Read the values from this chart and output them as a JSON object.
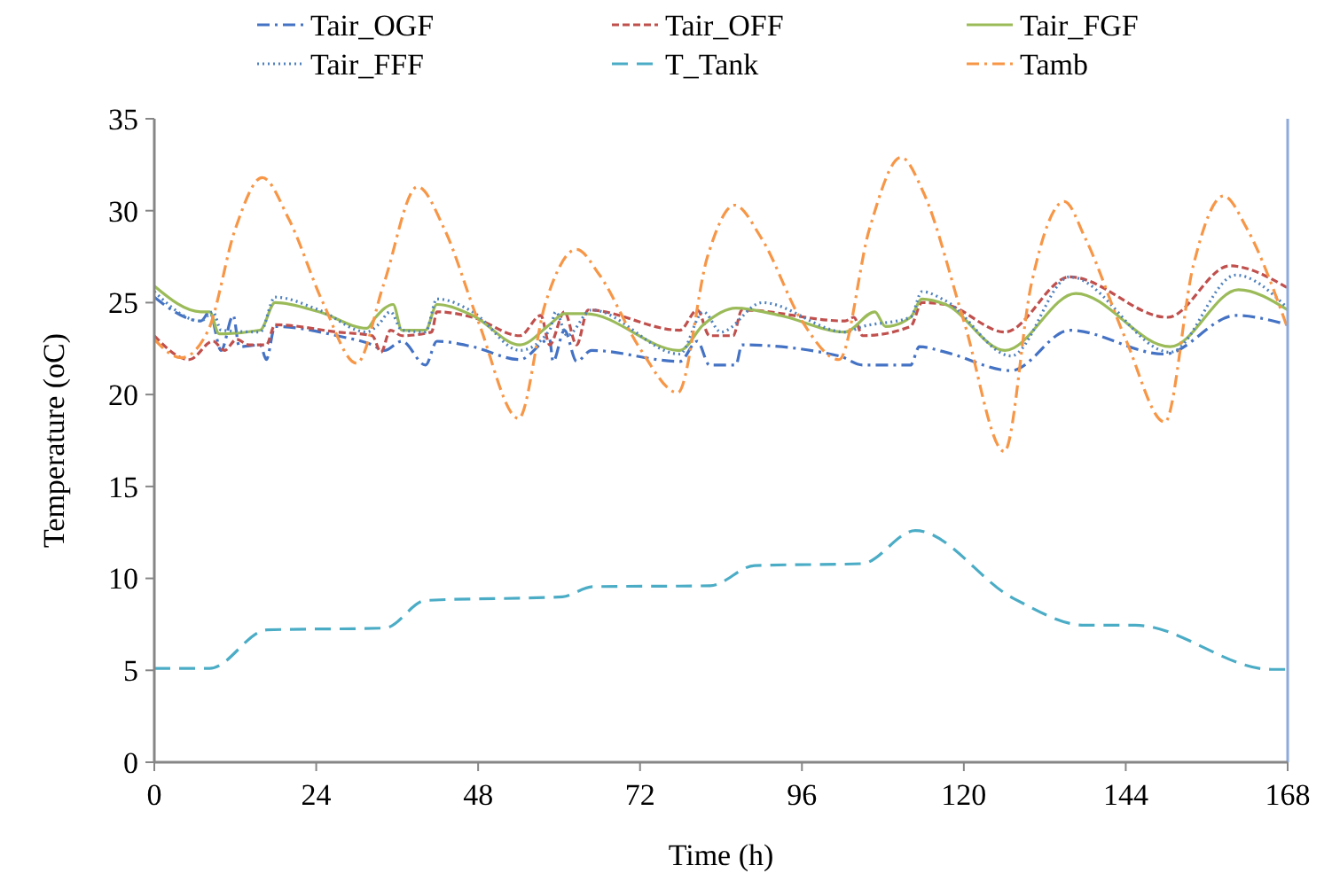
{
  "chart_data": {
    "type": "line",
    "xlabel": "Time (h)",
    "ylabel": "Temperature (oC)",
    "xlim": [
      0,
      168
    ],
    "xticks": [
      0,
      24,
      48,
      72,
      96,
      120,
      144,
      168
    ],
    "ylim": [
      0,
      35
    ],
    "yticks": [
      0,
      5,
      10,
      15,
      20,
      25,
      30,
      35
    ],
    "grid": false,
    "legend": "top",
    "series": [
      {
        "name": "Tair_OGF",
        "color": "#4472c4",
        "line_style": "dashdot",
        "x": [
          0,
          6.9,
          8.2,
          9.9,
          11.7,
          12.6,
          15.7,
          16.6,
          17.9,
          27.1,
          32.3,
          34.1,
          36.7,
          40.2,
          41.9,
          47.2,
          54.2,
          58.6,
          59.1,
          60.8,
          62.6,
          64.8,
          77.9,
          80.5,
          82.3,
          86.2,
          87.1,
          101.5,
          105,
          112.1,
          113.4,
          117.3,
          127,
          135.7,
          149.7,
          160.3,
          168
        ],
        "values": [
          25.3,
          24,
          24.5,
          22.4,
          24.3,
          22.6,
          22.7,
          21.9,
          23.7,
          23.2,
          22.7,
          22.4,
          22.9,
          21.6,
          22.9,
          22.6,
          21.9,
          23,
          21.8,
          23.5,
          21.8,
          22.4,
          21.8,
          22.9,
          21.6,
          21.6,
          22.7,
          22.1,
          21.6,
          21.6,
          22.6,
          22.3,
          21.3,
          23.5,
          22.2,
          24.3,
          23.8
        ]
      },
      {
        "name": "Tair_OFF",
        "color": "#c0504d",
        "line_style": "dashed",
        "x": [
          0,
          5.2,
          8.7,
          10.4,
          12.2,
          14,
          16.6,
          17.9,
          27.1,
          32.3,
          33.6,
          35,
          36.7,
          41.1,
          41.9,
          47.2,
          54.2,
          57.3,
          58.6,
          60.8,
          62.6,
          64.3,
          77.9,
          80.5,
          82.3,
          85.8,
          87.1,
          102.4,
          103.7,
          105,
          112.1,
          113.8,
          117.3,
          126.1,
          135.7,
          150.2,
          159.4,
          168
        ],
        "values": [
          23.2,
          21.9,
          22.9,
          22.4,
          23,
          22.7,
          22.7,
          23.8,
          23.4,
          23.2,
          22.3,
          23.5,
          23.2,
          23.4,
          24.5,
          24.2,
          23.2,
          24.3,
          22.7,
          24.5,
          22.7,
          24.6,
          23.5,
          24.6,
          23.2,
          23.2,
          24.6,
          24,
          24.2,
          23.2,
          23.7,
          25,
          24.9,
          23.4,
          26.4,
          24.2,
          27,
          25.8
        ]
      },
      {
        "name": "Tair_FGF",
        "color": "#9bbb59",
        "line_style": "solid",
        "x": [
          0,
          6.9,
          8.2,
          9.6,
          15.7,
          17.9,
          24.4,
          31.5,
          32.8,
          35.4,
          36.7,
          40.2,
          41.9,
          47.2,
          54.2,
          58.6,
          60.8,
          63.9,
          77.9,
          81.4,
          86.2,
          92.8,
          102.4,
          106.8,
          108.4,
          112.1,
          113.8,
          117.3,
          126.1,
          136.6,
          150.6,
          160.7,
          168
        ],
        "values": [
          25.9,
          24.5,
          24.5,
          23.3,
          23.5,
          25,
          24.5,
          23.6,
          24.2,
          24.9,
          23.5,
          23.5,
          24.9,
          24.3,
          22.7,
          23.8,
          24.4,
          24.4,
          22.4,
          23.8,
          24.7,
          24.3,
          23.4,
          24.5,
          23.7,
          24.2,
          25.2,
          24.9,
          22.4,
          25.5,
          22.6,
          25.7,
          24.6
        ]
      },
      {
        "name": "Tair_FFF",
        "color": "#4f81bd",
        "line_style": "dotted",
        "x": [
          0,
          6.9,
          8.7,
          9.9,
          15.7,
          17.9,
          24.4,
          31.5,
          33.2,
          35,
          36.7,
          40.2,
          41.9,
          47.2,
          54.2,
          58.6,
          59.5,
          61.2,
          64.8,
          77.9,
          81.4,
          84,
          90.1,
          102.4,
          105,
          112.1,
          113.8,
          117.3,
          127,
          135.7,
          150.6,
          160.3,
          168
        ],
        "values": [
          25.6,
          24,
          24.5,
          23.5,
          23.4,
          25.3,
          24.6,
          23.4,
          23.8,
          24.5,
          23.5,
          23.4,
          25.2,
          24.5,
          22.4,
          23.5,
          24.5,
          23.2,
          24.6,
          22.2,
          24.5,
          23.4,
          25,
          23.4,
          23.7,
          24.2,
          25.6,
          25.1,
          22.1,
          26.4,
          22.3,
          26.5,
          24.7
        ]
      },
      {
        "name": "T_Tank",
        "color": "#4bacc6",
        "line_style": "longdash",
        "x": [
          0,
          8.2,
          16.7,
          34.2,
          40.2,
          60.5,
          65,
          82.4,
          89,
          104.9,
          112.8,
          127.4,
          138,
          145.4,
          165.6,
          168
        ],
        "values": [
          5.1,
          5.1,
          7.2,
          7.3,
          8.8,
          9,
          9.55,
          9.6,
          10.7,
          10.8,
          12.6,
          8.9,
          7.45,
          7.45,
          5.05,
          5.05
        ]
      },
      {
        "name": "Tamb",
        "color": "#f79646",
        "line_style": "dashdot",
        "x": [
          0,
          4,
          8,
          12,
          16,
          20,
          25,
          30,
          34,
          39,
          43,
          48,
          54,
          58,
          62.6,
          66,
          72,
          77.6,
          82,
          86,
          90,
          96,
          101.5,
          106,
          110.7,
          114,
          120,
          126,
          130,
          134.9,
          138,
          144,
          149.8,
          154,
          158.5,
          162,
          168
        ],
        "values": [
          23,
          22,
          23.5,
          29,
          31.8,
          29.5,
          25,
          21.7,
          26,
          31.3,
          29,
          24,
          18.7,
          25,
          27.9,
          26.5,
          22.5,
          20.1,
          27.5,
          30.3,
          28.5,
          24,
          21.9,
          29,
          32.9,
          31,
          24,
          16.9,
          26,
          30.5,
          28.5,
          23,
          18.5,
          27,
          30.8,
          29,
          23.6
        ]
      }
    ]
  }
}
